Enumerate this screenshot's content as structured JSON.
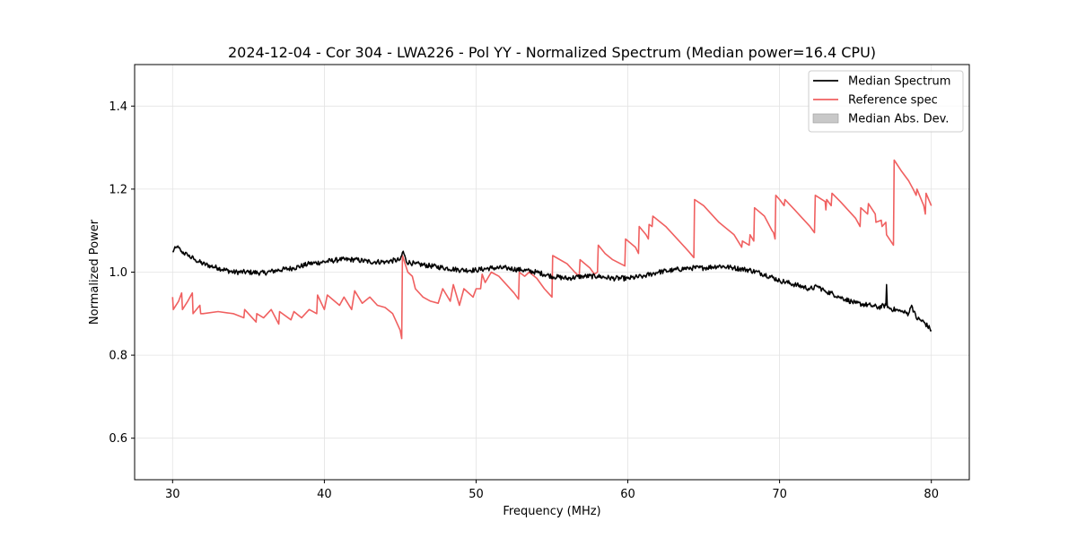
{
  "chart_data": {
    "type": "line",
    "title": "2024-12-04 - Cor 304 - LWA226 - Pol YY - Normalized Spectrum (Median power=16.4 CPU)",
    "xlabel": "Frequency (MHz)",
    "ylabel": "Normalized Power",
    "xlim": [
      27.5,
      82.5
    ],
    "ylim": [
      0.5,
      1.5
    ],
    "xticks": [
      30,
      40,
      50,
      60,
      70,
      80
    ],
    "yticks": [
      0.6,
      0.8,
      1.0,
      1.2,
      1.4
    ],
    "xtick_labels": [
      "30",
      "40",
      "50",
      "60",
      "70",
      "80"
    ],
    "ytick_labels": [
      "0.6",
      "0.8",
      "1.0",
      "1.2",
      "1.4"
    ],
    "grid": true,
    "legend_position": "top-right",
    "legend": [
      {
        "label": "Median Spectrum",
        "color": "#000000",
        "kind": "line"
      },
      {
        "label": "Reference spec",
        "color": "#f06060",
        "kind": "line"
      },
      {
        "label": "Median Abs. Dev.",
        "color": "#c8c8c8",
        "kind": "patch"
      }
    ],
    "series": [
      {
        "name": "Median Spectrum",
        "color": "#000000",
        "points": [
          [
            30.0,
            1.05
          ],
          [
            30.3,
            1.06
          ],
          [
            30.6,
            1.05
          ],
          [
            31.0,
            1.04
          ],
          [
            31.5,
            1.03
          ],
          [
            32.0,
            1.02
          ],
          [
            32.5,
            1.015
          ],
          [
            33.0,
            1.01
          ],
          [
            33.5,
            1.005
          ],
          [
            34.0,
            1.0
          ],
          [
            35.0,
            1.0
          ],
          [
            36.0,
            0.998
          ],
          [
            37.0,
            1.005
          ],
          [
            38.0,
            1.01
          ],
          [
            39.0,
            1.02
          ],
          [
            40.0,
            1.025
          ],
          [
            41.0,
            1.03
          ],
          [
            42.0,
            1.03
          ],
          [
            43.0,
            1.025
          ],
          [
            44.0,
            1.025
          ],
          [
            45.0,
            1.03
          ],
          [
            45.2,
            1.05
          ],
          [
            45.4,
            1.025
          ],
          [
            46.0,
            1.02
          ],
          [
            47.0,
            1.015
          ],
          [
            48.0,
            1.01
          ],
          [
            49.0,
            1.005
          ],
          [
            50.0,
            1.005
          ],
          [
            51.0,
            1.01
          ],
          [
            52.0,
            1.01
          ],
          [
            53.0,
            1.005
          ],
          [
            54.0,
            1.0
          ],
          [
            55.0,
            0.99
          ],
          [
            56.0,
            0.985
          ],
          [
            57.0,
            0.99
          ],
          [
            58.0,
            0.99
          ],
          [
            59.0,
            0.985
          ],
          [
            60.0,
            0.985
          ],
          [
            61.0,
            0.99
          ],
          [
            62.0,
            1.0
          ],
          [
            63.0,
            1.005
          ],
          [
            64.0,
            1.01
          ],
          [
            65.0,
            1.01
          ],
          [
            66.0,
            1.015
          ],
          [
            67.0,
            1.01
          ],
          [
            68.0,
            1.005
          ],
          [
            69.0,
            0.995
          ],
          [
            70.0,
            0.98
          ],
          [
            71.0,
            0.97
          ],
          [
            72.0,
            0.96
          ],
          [
            72.5,
            0.965
          ],
          [
            73.0,
            0.955
          ],
          [
            74.0,
            0.94
          ],
          [
            75.0,
            0.925
          ],
          [
            76.0,
            0.92
          ],
          [
            76.5,
            0.915
          ],
          [
            77.0,
            0.92
          ],
          [
            77.05,
            0.97
          ],
          [
            77.1,
            0.915
          ],
          [
            78.0,
            0.905
          ],
          [
            78.5,
            0.9
          ],
          [
            78.7,
            0.92
          ],
          [
            79.0,
            0.89
          ],
          [
            79.5,
            0.88
          ],
          [
            80.0,
            0.86
          ]
        ]
      },
      {
        "name": "Reference spec",
        "color": "#f06060",
        "points": [
          [
            30.0,
            0.94
          ],
          [
            30.05,
            0.91
          ],
          [
            30.4,
            0.93
          ],
          [
            30.6,
            0.95
          ],
          [
            30.65,
            0.91
          ],
          [
            31.0,
            0.93
          ],
          [
            31.3,
            0.95
          ],
          [
            31.35,
            0.9
          ],
          [
            31.8,
            0.92
          ],
          [
            31.85,
            0.9
          ],
          [
            32.0,
            0.9
          ],
          [
            33.0,
            0.905
          ],
          [
            34.0,
            0.9
          ],
          [
            34.7,
            0.89
          ],
          [
            34.75,
            0.91
          ],
          [
            35.5,
            0.88
          ],
          [
            35.55,
            0.9
          ],
          [
            36.0,
            0.89
          ],
          [
            36.5,
            0.91
          ],
          [
            37.0,
            0.875
          ],
          [
            37.05,
            0.905
          ],
          [
            37.8,
            0.885
          ],
          [
            38.0,
            0.905
          ],
          [
            38.5,
            0.89
          ],
          [
            39.0,
            0.91
          ],
          [
            39.5,
            0.9
          ],
          [
            39.55,
            0.945
          ],
          [
            40.0,
            0.91
          ],
          [
            40.2,
            0.945
          ],
          [
            41.0,
            0.92
          ],
          [
            41.3,
            0.94
          ],
          [
            41.8,
            0.91
          ],
          [
            42.0,
            0.955
          ],
          [
            42.5,
            0.925
          ],
          [
            43.0,
            0.94
          ],
          [
            43.5,
            0.92
          ],
          [
            44.0,
            0.915
          ],
          [
            44.5,
            0.9
          ],
          [
            45.0,
            0.86
          ],
          [
            45.1,
            0.84
          ],
          [
            45.15,
            1.04
          ],
          [
            45.5,
            1.0
          ],
          [
            45.8,
            0.99
          ],
          [
            46.0,
            0.96
          ],
          [
            46.5,
            0.94
          ],
          [
            47.0,
            0.93
          ],
          [
            47.5,
            0.925
          ],
          [
            47.8,
            0.96
          ],
          [
            48.3,
            0.93
          ],
          [
            48.5,
            0.97
          ],
          [
            48.9,
            0.92
          ],
          [
            49.2,
            0.96
          ],
          [
            49.8,
            0.94
          ],
          [
            50.0,
            0.96
          ],
          [
            50.3,
            0.96
          ],
          [
            50.4,
            0.995
          ],
          [
            50.6,
            0.975
          ],
          [
            51.0,
            1.0
          ],
          [
            51.5,
            0.99
          ],
          [
            52.0,
            0.97
          ],
          [
            52.5,
            0.95
          ],
          [
            52.8,
            0.935
          ],
          [
            52.85,
            1.0
          ],
          [
            53.2,
            0.99
          ],
          [
            53.5,
            1.0
          ],
          [
            54.0,
            0.985
          ],
          [
            54.5,
            0.96
          ],
          [
            55.0,
            0.94
          ],
          [
            55.05,
            1.04
          ],
          [
            56.0,
            1.02
          ],
          [
            56.5,
            1.0
          ],
          [
            56.8,
            0.99
          ],
          [
            56.85,
            1.03
          ],
          [
            57.5,
            1.01
          ],
          [
            57.8,
            0.995
          ],
          [
            58.0,
            1.0
          ],
          [
            58.05,
            1.065
          ],
          [
            58.5,
            1.045
          ],
          [
            59.0,
            1.03
          ],
          [
            59.8,
            1.015
          ],
          [
            59.85,
            1.08
          ],
          [
            60.5,
            1.06
          ],
          [
            60.7,
            1.045
          ],
          [
            60.75,
            1.11
          ],
          [
            61.2,
            1.09
          ],
          [
            61.35,
            1.08
          ],
          [
            61.4,
            1.115
          ],
          [
            61.6,
            1.11
          ],
          [
            61.65,
            1.135
          ],
          [
            62.5,
            1.11
          ],
          [
            63.0,
            1.09
          ],
          [
            64.0,
            1.05
          ],
          [
            64.35,
            1.035
          ],
          [
            64.4,
            1.175
          ],
          [
            65.0,
            1.16
          ],
          [
            66.0,
            1.12
          ],
          [
            67.0,
            1.09
          ],
          [
            67.5,
            1.06
          ],
          [
            67.55,
            1.075
          ],
          [
            68.0,
            1.065
          ],
          [
            68.05,
            1.09
          ],
          [
            68.3,
            1.075
          ],
          [
            68.35,
            1.155
          ],
          [
            69.0,
            1.135
          ],
          [
            69.5,
            1.1
          ],
          [
            69.6,
            1.095
          ],
          [
            69.7,
            1.08
          ],
          [
            69.75,
            1.185
          ],
          [
            70.0,
            1.175
          ],
          [
            70.3,
            1.16
          ],
          [
            70.35,
            1.175
          ],
          [
            71.0,
            1.15
          ],
          [
            72.0,
            1.11
          ],
          [
            72.3,
            1.095
          ],
          [
            72.35,
            1.185
          ],
          [
            73.0,
            1.17
          ],
          [
            73.05,
            1.15
          ],
          [
            73.1,
            1.175
          ],
          [
            73.4,
            1.16
          ],
          [
            73.45,
            1.19
          ],
          [
            74.0,
            1.17
          ],
          [
            75.0,
            1.13
          ],
          [
            75.3,
            1.11
          ],
          [
            75.35,
            1.155
          ],
          [
            75.8,
            1.14
          ],
          [
            75.85,
            1.165
          ],
          [
            76.3,
            1.14
          ],
          [
            76.35,
            1.12
          ],
          [
            76.7,
            1.125
          ],
          [
            76.75,
            1.11
          ],
          [
            77.0,
            1.12
          ],
          [
            77.05,
            1.09
          ],
          [
            77.5,
            1.065
          ],
          [
            77.55,
            1.27
          ],
          [
            78.0,
            1.245
          ],
          [
            78.5,
            1.22
          ],
          [
            78.8,
            1.2
          ],
          [
            79.0,
            1.185
          ],
          [
            79.05,
            1.2
          ],
          [
            79.5,
            1.16
          ],
          [
            79.6,
            1.14
          ],
          [
            79.65,
            1.19
          ],
          [
            80.0,
            1.16
          ]
        ]
      }
    ]
  }
}
